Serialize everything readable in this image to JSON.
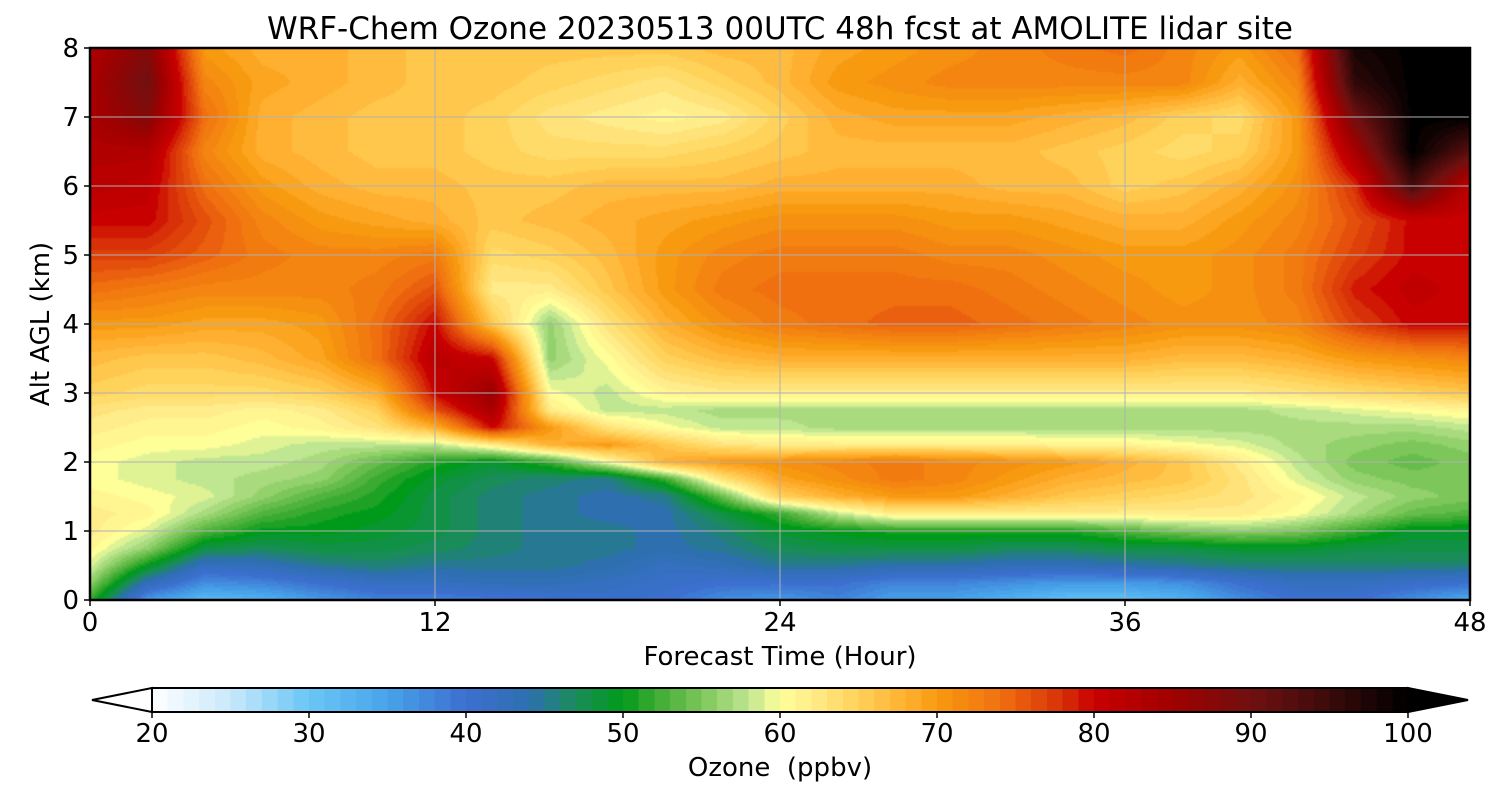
{
  "chart_data": {
    "type": "heatmap",
    "title": "WRF-Chem Ozone  20230513 00UTC 48h fcst at AMOLITE lidar site",
    "xlabel": "Forecast Time (Hour)",
    "ylabel": "Alt AGL (km)",
    "xlim": [
      0,
      48
    ],
    "ylim": [
      0,
      8
    ],
    "x_ticks": [
      "0",
      "12",
      "24",
      "36",
      "48"
    ],
    "y_ticks": [
      "0",
      "1",
      "2",
      "3",
      "4",
      "5",
      "6",
      "7",
      "8"
    ],
    "grid": true,
    "colorbar": {
      "label": "Ozone  (ppbv)",
      "min": 20,
      "max": 100,
      "ticks": [
        "20",
        "30",
        "40",
        "50",
        "60",
        "70",
        "80",
        "90",
        "100"
      ],
      "extend": "both",
      "orientation": "horizontal",
      "colormap": [
        [
          20,
          "#ffffff"
        ],
        [
          25,
          "#c8e8fa"
        ],
        [
          30,
          "#6ac6f5"
        ],
        [
          35,
          "#47a3ea"
        ],
        [
          40,
          "#3c6fcf"
        ],
        [
          44,
          "#2d6faf"
        ],
        [
          47,
          "#1a8c5a"
        ],
        [
          50,
          "#009a1a"
        ],
        [
          52,
          "#3aaa30"
        ],
        [
          55,
          "#7cc65a"
        ],
        [
          58,
          "#bfe690"
        ],
        [
          60,
          "#ffff99"
        ],
        [
          62,
          "#ffec8a"
        ],
        [
          65,
          "#ffd25a"
        ],
        [
          68,
          "#ffb030"
        ],
        [
          70,
          "#f89a10"
        ],
        [
          74,
          "#f07010"
        ],
        [
          78,
          "#d83008"
        ],
        [
          80,
          "#c80000"
        ],
        [
          85,
          "#a00000"
        ],
        [
          90,
          "#701010"
        ],
        [
          95,
          "#3a0a0a"
        ],
        [
          100,
          "#000000"
        ]
      ]
    },
    "x": [
      0,
      2,
      4,
      6,
      8,
      10,
      12,
      14,
      16,
      18,
      20,
      22,
      24,
      26,
      28,
      30,
      32,
      34,
      36,
      38,
      40,
      42,
      44,
      46,
      48
    ],
    "y": [
      0,
      0.25,
      0.5,
      0.75,
      1,
      1.25,
      1.5,
      1.75,
      2,
      2.25,
      2.5,
      2.75,
      3,
      3.5,
      4,
      4.5,
      5,
      5.5,
      6,
      6.5,
      7,
      7.5,
      8
    ],
    "z": [
      [
        52,
        36,
        32,
        33,
        36,
        38,
        38,
        39,
        40,
        41,
        40,
        37,
        36,
        38,
        35,
        35,
        33,
        31,
        31,
        33,
        37,
        40,
        40,
        37,
        34
      ],
      [
        56,
        43,
        37,
        38,
        40,
        42,
        42,
        43,
        43,
        42,
        41,
        40,
        40,
        40,
        38,
        38,
        37,
        36,
        36,
        37,
        40,
        42,
        42,
        41,
        40
      ],
      [
        59,
        50,
        42,
        43,
        45,
        46,
        45,
        45,
        45,
        44,
        42,
        43,
        45,
        45,
        44,
        44,
        43,
        43,
        44,
        45,
        46,
        46,
        46,
        46,
        46
      ],
      [
        61,
        56,
        48,
        47,
        48,
        48,
        47,
        46,
        45,
        45,
        44,
        45,
        47,
        48,
        48,
        48,
        47,
        47,
        48,
        48,
        49,
        49,
        48,
        48,
        48
      ],
      [
        62,
        59,
        53,
        50,
        50,
        49,
        48,
        46,
        45,
        45,
        44,
        46,
        49,
        50,
        51,
        51,
        51,
        51,
        53,
        55,
        56,
        55,
        52,
        49,
        49
      ],
      [
        62,
        61,
        57,
        53,
        51,
        50,
        48,
        46,
        45,
        44,
        44,
        48,
        52,
        58,
        62,
        62,
        62,
        62,
        62,
        62,
        62,
        60,
        57,
        54,
        53
      ],
      [
        61,
        60,
        59,
        56,
        53,
        51,
        48,
        46,
        45,
        44,
        45,
        54,
        65,
        68,
        70,
        70,
        68,
        66,
        65,
        64,
        63,
        61,
        58,
        56,
        55
      ],
      [
        60,
        59,
        58,
        57,
        56,
        52,
        49,
        47,
        46,
        45,
        52,
        63,
        69,
        71,
        73,
        72,
        70,
        68,
        67,
        66,
        63,
        59,
        56,
        55,
        55
      ],
      [
        60,
        59,
        58,
        58,
        57,
        54,
        51,
        49,
        52,
        60,
        68,
        70,
        71,
        72,
        73,
        72,
        71,
        70,
        68,
        66,
        62,
        58,
        55,
        54,
        55
      ],
      [
        61,
        60,
        60,
        59,
        58,
        58,
        58,
        62,
        68,
        70,
        66,
        63,
        62,
        62,
        62,
        62,
        62,
        61,
        61,
        60,
        59,
        57,
        56,
        55,
        56
      ],
      [
        62,
        61,
        61,
        60,
        61,
        63,
        68,
        80,
        70,
        63,
        60,
        58,
        58,
        57,
        57,
        57,
        57,
        57,
        57,
        57,
        57,
        57,
        57,
        57,
        58
      ],
      [
        63,
        62,
        62,
        61,
        62,
        65,
        76,
        84,
        62,
        58,
        58,
        57,
        57,
        57,
        57,
        57,
        57,
        57,
        57,
        57,
        57,
        58,
        59,
        60,
        61
      ],
      [
        65,
        64,
        64,
        64,
        65,
        68,
        80,
        86,
        60,
        58,
        61,
        62,
        62,
        62,
        62,
        62,
        62,
        62,
        62,
        62,
        62,
        63,
        64,
        65,
        66
      ],
      [
        67,
        66,
        66,
        67,
        69,
        74,
        82,
        80,
        56,
        60,
        65,
        67,
        68,
        68,
        68,
        68,
        68,
        68,
        68,
        67,
        67,
        68,
        70,
        71,
        72
      ],
      [
        70,
        70,
        69,
        69,
        70,
        74,
        80,
        66,
        56,
        63,
        68,
        71,
        73,
        74,
        75,
        75,
        74,
        73,
        72,
        71,
        71,
        72,
        77,
        80,
        80
      ],
      [
        74,
        73,
        72,
        72,
        72,
        73,
        76,
        62,
        62,
        66,
        70,
        73,
        74,
        74,
        74,
        74,
        73,
        72,
        71,
        70,
        71,
        73,
        79,
        81,
        80
      ],
      [
        77,
        77,
        75,
        73,
        72,
        72,
        73,
        64,
        65,
        67,
        70,
        72,
        73,
        73,
        73,
        72,
        72,
        71,
        70,
        70,
        71,
        73,
        77,
        80,
        80
      ],
      [
        80,
        80,
        76,
        72,
        70,
        69,
        68,
        66,
        67,
        68,
        69,
        70,
        71,
        71,
        71,
        70,
        70,
        69,
        68,
        68,
        70,
        72,
        76,
        80,
        80
      ],
      [
        82,
        81,
        74,
        70,
        68,
        67,
        67,
        66,
        66,
        67,
        67,
        67,
        68,
        68,
        68,
        68,
        67,
        67,
        65,
        66,
        68,
        71,
        78,
        94,
        81
      ],
      [
        83,
        83,
        72,
        68,
        67,
        66,
        66,
        65,
        64,
        64,
        64,
        65,
        66,
        67,
        67,
        67,
        67,
        66,
        65,
        64,
        65,
        70,
        84,
        100,
        92
      ],
      [
        84,
        88,
        74,
        68,
        67,
        66,
        66,
        65,
        63,
        62,
        61,
        62,
        65,
        68,
        69,
        69,
        69,
        68,
        67,
        65,
        64,
        70,
        90,
        100,
        100
      ],
      [
        84,
        90,
        72,
        69,
        68,
        67,
        66,
        66,
        65,
        64,
        63,
        65,
        67,
        70,
        71,
        72,
        72,
        72,
        72,
        72,
        68,
        72,
        96,
        100,
        100
      ],
      [
        83,
        88,
        70,
        68,
        68,
        67,
        66,
        66,
        66,
        66,
        66,
        67,
        67,
        69,
        70,
        71,
        72,
        73,
        74,
        72,
        70,
        74,
        98,
        100,
        100
      ]
    ]
  }
}
